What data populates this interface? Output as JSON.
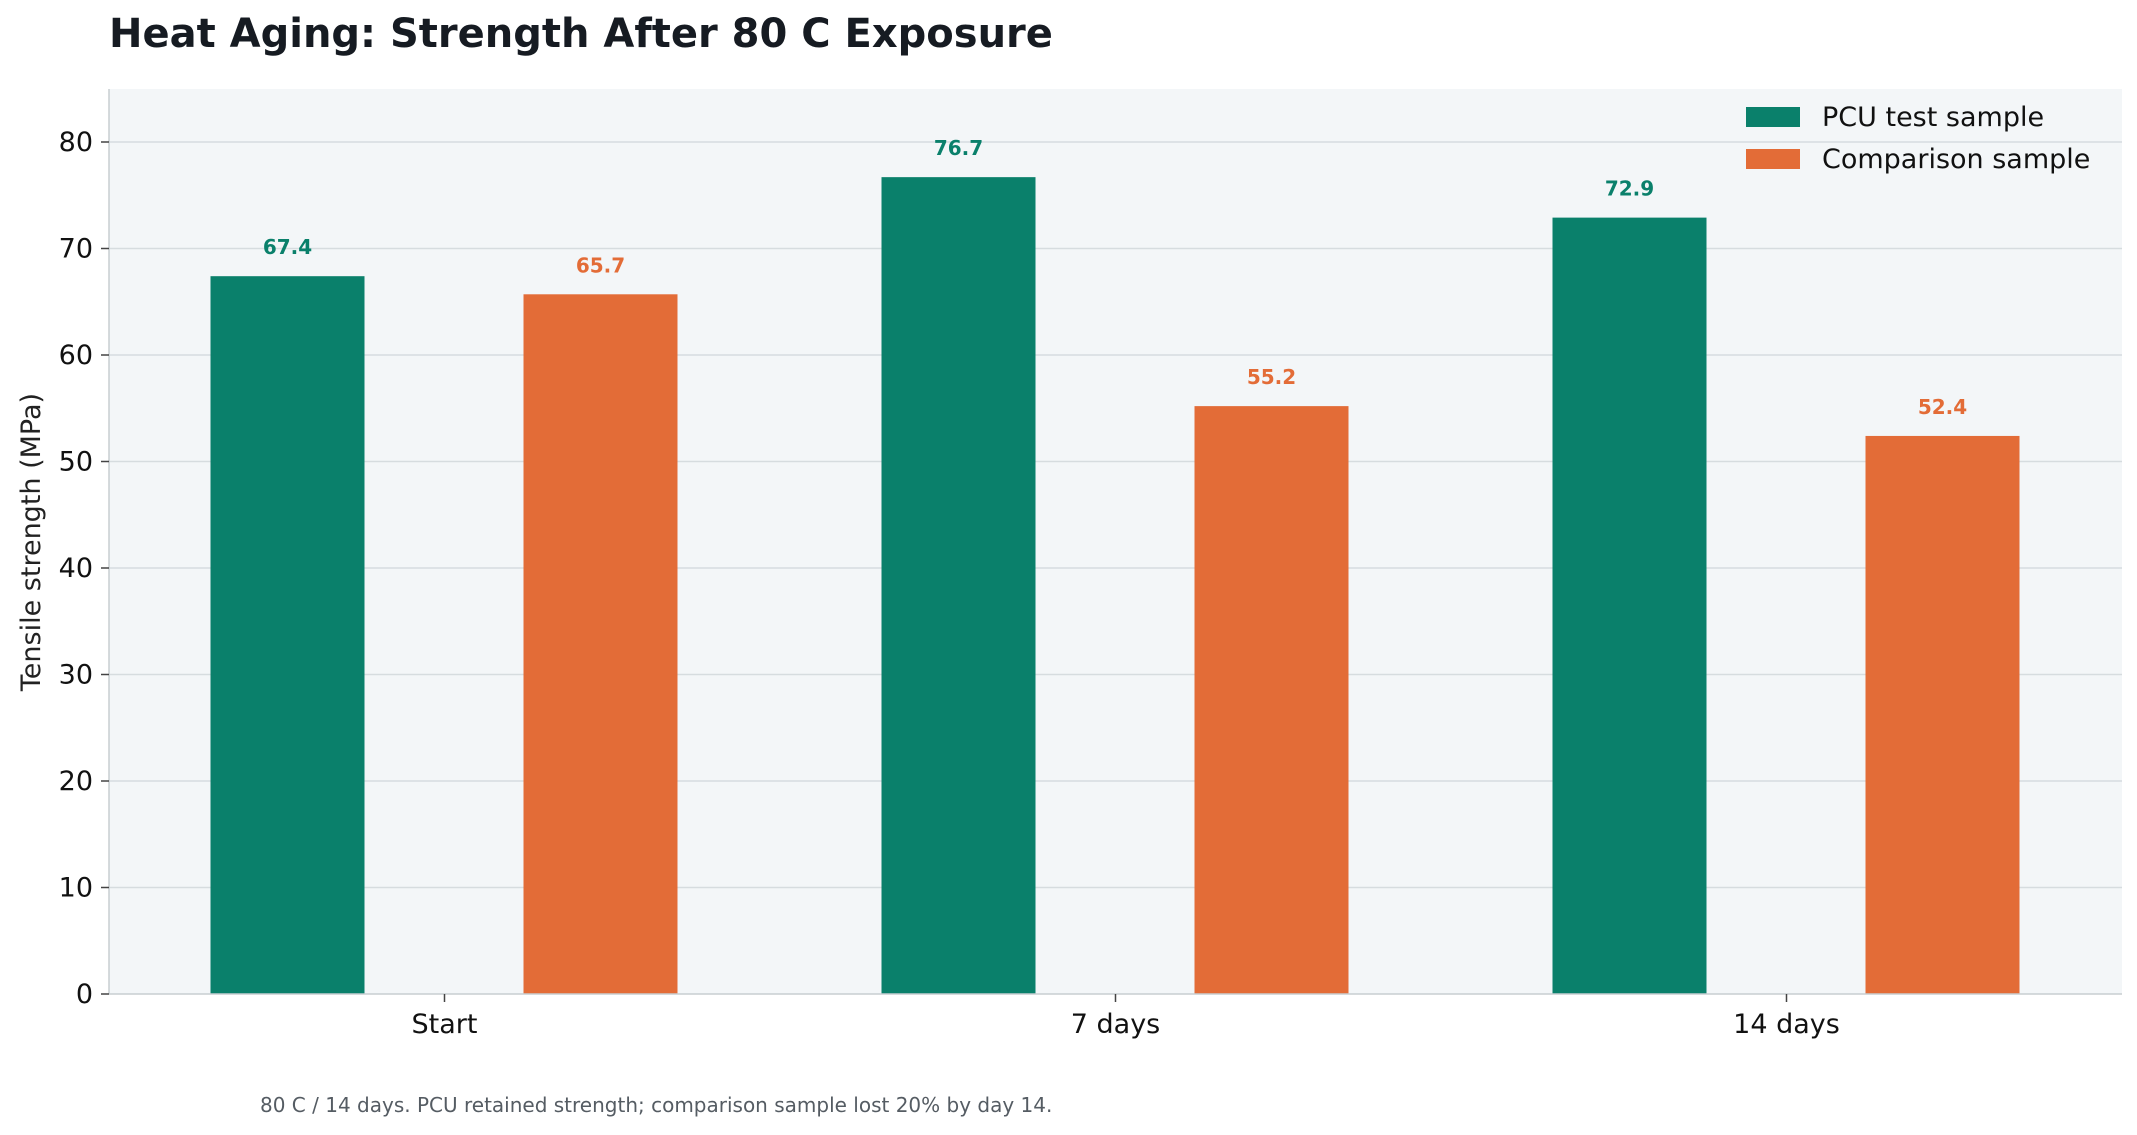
{
  "chart_data": {
    "type": "bar",
    "title": "Heat Aging: Strength After 80 C Exposure",
    "ylabel": "Tensile strength (MPa)",
    "xlabel": "",
    "categories": [
      "Start",
      "7 days",
      "14 days"
    ],
    "series": [
      {
        "name": "PCU test sample",
        "values": [
          67.4,
          76.7,
          72.9
        ],
        "color": "#0a806b"
      },
      {
        "name": "Comparison sample",
        "values": [
          65.7,
          55.2,
          52.4
        ],
        "color": "#e36c37"
      }
    ],
    "ylim": [
      0,
      85
    ],
    "yticks": [
      0,
      10,
      20,
      30,
      40,
      50,
      60,
      70,
      80
    ],
    "grid": true,
    "legend": "top-right",
    "caption": "80 C / 14 days. PCU retained strength; comparison sample lost 20% by day 14."
  },
  "colors": {
    "plot_bg": "#f3f6f8",
    "grid": "#d6dcdf"
  }
}
